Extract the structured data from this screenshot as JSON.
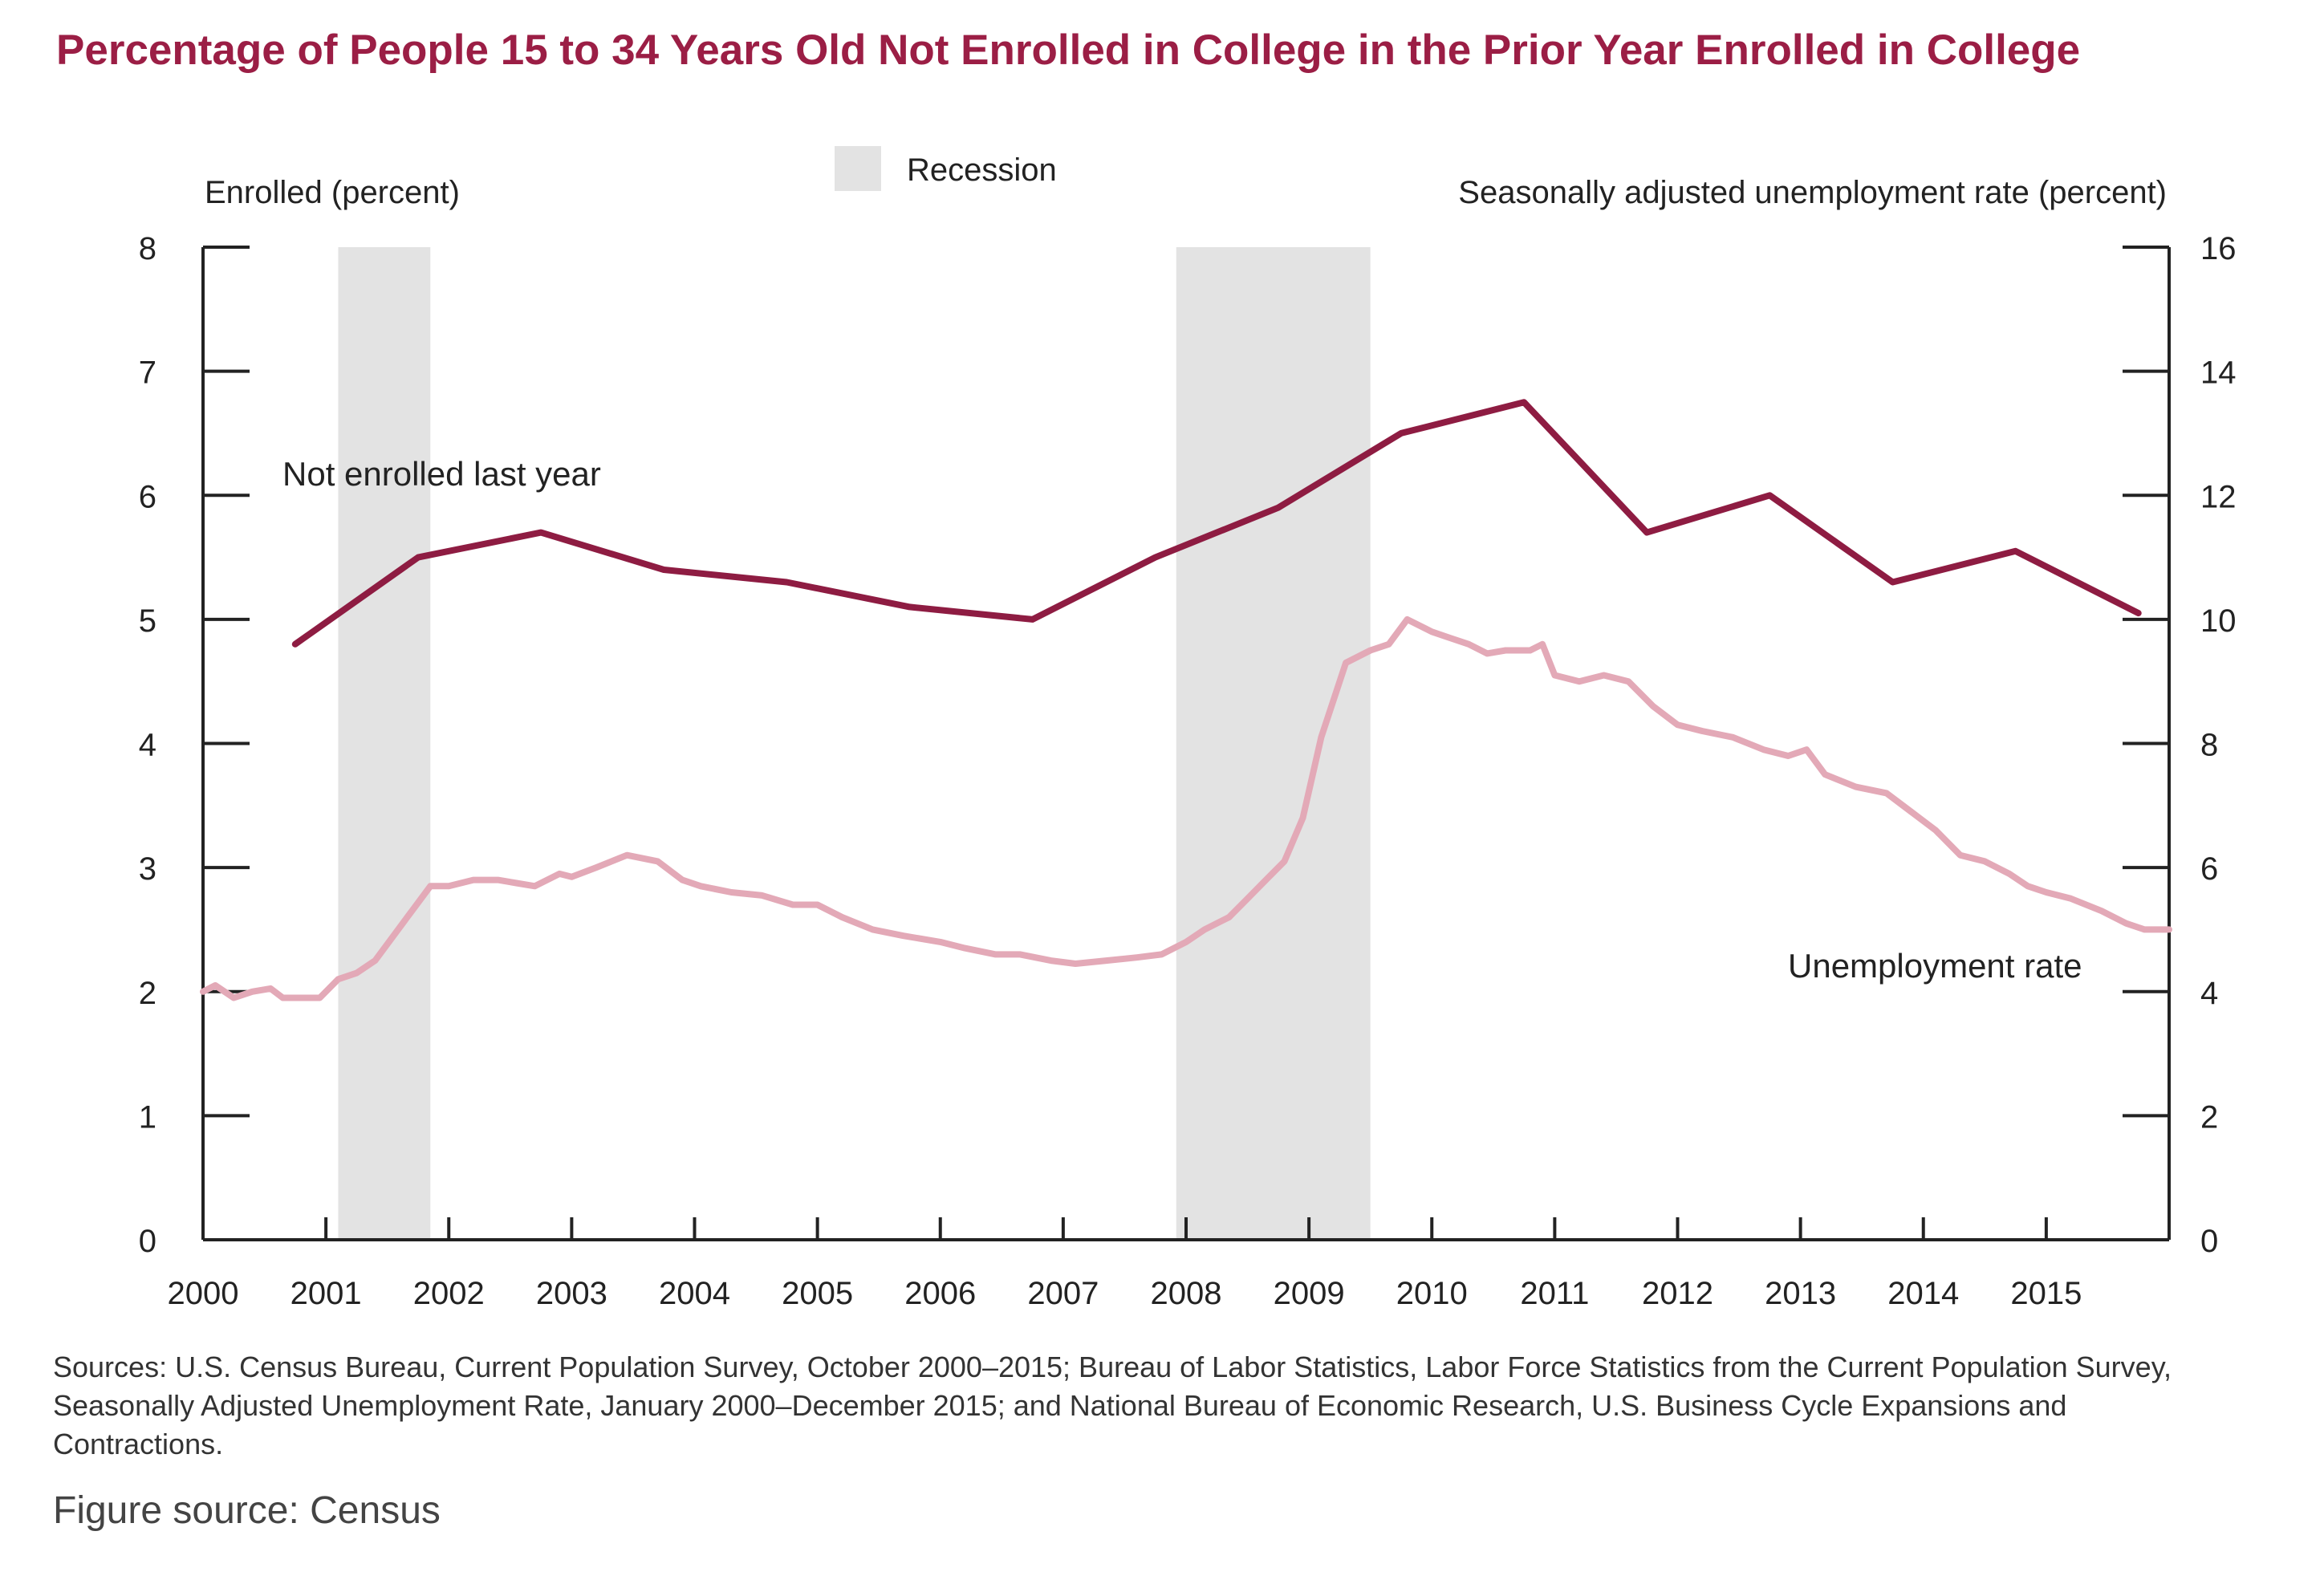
{
  "title": "Percentage of People 15 to 34 Years Old Not Enrolled in College in the Prior Year Enrolled in College",
  "sources": "Sources: U.S. Census Bureau, Current Population Survey, October 2000–2015; Bureau of Labor Statistics, Labor Force Statistics from the Current Population Survey, Seasonally Adjusted Unemployment Rate, January 2000–December 2015; and National Bureau of Economic Research, U.S. Business Cycle Expansions and Contractions.",
  "figure_source": "Figure source: Census",
  "colors": {
    "enrolled": "#8e1c42",
    "unemployment": "#e3a9b7",
    "recession": "#e3e3e3",
    "axis": "#222222"
  },
  "chart_data": {
    "type": "line",
    "title": "Percentage of People 15 to 34 Years Old Not Enrolled in College in the Prior Year Enrolled in College",
    "legend": {
      "label": "Recession",
      "placement": "top-center"
    },
    "left_axis_label": "Enrolled (percent)",
    "right_axis_label": "Seasonally adjusted unemployment rate (percent)",
    "x_ticks": [
      "2000",
      "2001",
      "2002",
      "2003",
      "2004",
      "2005",
      "2006",
      "2007",
      "2008",
      "2009",
      "2010",
      "2011",
      "2012",
      "2013",
      "2014",
      "2015"
    ],
    "xlim": [
      2000,
      2016
    ],
    "ylim_left": [
      0,
      8
    ],
    "ylim_right": [
      0,
      16
    ],
    "yticks_left": [
      0,
      1,
      2,
      3,
      4,
      5,
      6,
      7,
      8
    ],
    "yticks_right": [
      0,
      2,
      4,
      6,
      8,
      10,
      12,
      14,
      16
    ],
    "recessions": [
      {
        "start": 2001.1,
        "end": 2001.85
      },
      {
        "start": 2007.92,
        "end": 2009.5
      }
    ],
    "series": [
      {
        "name": "Not enrolled last year",
        "axis": "left",
        "label_text": "Not enrolled last year",
        "x": [
          2000.75,
          2001.75,
          2002.75,
          2003.75,
          2004.75,
          2005.75,
          2006.75,
          2007.75,
          2008.75,
          2009.75,
          2010.75,
          2011.75,
          2012.75,
          2013.75,
          2014.75,
          2015.75
        ],
        "y": [
          4.8,
          5.5,
          5.7,
          5.4,
          5.3,
          5.1,
          5.0,
          5.5,
          5.9,
          6.5,
          6.75,
          5.7,
          6.0,
          5.3,
          5.55,
          5.05
        ]
      },
      {
        "name": "Unemployment rate",
        "axis": "right",
        "label_text": "Unemployment rate",
        "x": [
          2000.0,
          2000.1,
          2000.25,
          2000.4,
          2000.55,
          2000.65,
          2000.75,
          2000.95,
          2001.1,
          2001.25,
          2001.4,
          2001.55,
          2001.7,
          2001.85,
          2002.0,
          2002.2,
          2002.4,
          2002.55,
          2002.7,
          2002.9,
          2003.0,
          2003.2,
          2003.45,
          2003.7,
          2003.9,
          2004.05,
          2004.3,
          2004.55,
          2004.8,
          2005.0,
          2005.2,
          2005.45,
          2005.7,
          2006.0,
          2006.2,
          2006.45,
          2006.65,
          2006.9,
          2007.1,
          2007.35,
          2007.6,
          2007.8,
          2008.0,
          2008.15,
          2008.35,
          2008.5,
          2008.65,
          2008.8,
          2008.95,
          2009.1,
          2009.3,
          2009.5,
          2009.65,
          2009.8,
          2010.0,
          2010.15,
          2010.3,
          2010.45,
          2010.6,
          2010.8,
          2010.9,
          2011.0,
          2011.2,
          2011.4,
          2011.6,
          2011.8,
          2012.0,
          2012.2,
          2012.45,
          2012.7,
          2012.9,
          2013.05,
          2013.2,
          2013.45,
          2013.7,
          2013.9,
          2014.1,
          2014.3,
          2014.5,
          2014.7,
          2014.85,
          2015.0,
          2015.2,
          2015.45,
          2015.65,
          2015.8,
          2016.0
        ],
        "y": [
          4.0,
          4.1,
          3.9,
          4.0,
          4.05,
          3.9,
          3.9,
          3.9,
          4.2,
          4.3,
          4.5,
          4.9,
          5.3,
          5.7,
          5.7,
          5.8,
          5.8,
          5.75,
          5.7,
          5.9,
          5.85,
          6.0,
          6.2,
          6.1,
          5.8,
          5.7,
          5.6,
          5.55,
          5.4,
          5.4,
          5.2,
          5.0,
          4.9,
          4.8,
          4.7,
          4.6,
          4.6,
          4.5,
          4.45,
          4.5,
          4.55,
          4.6,
          4.8,
          5.0,
          5.2,
          5.5,
          5.8,
          6.1,
          6.8,
          8.1,
          9.3,
          9.5,
          9.6,
          10.0,
          9.8,
          9.7,
          9.6,
          9.45,
          9.5,
          9.5,
          9.6,
          9.1,
          9.0,
          9.1,
          9.0,
          8.6,
          8.3,
          8.2,
          8.1,
          7.9,
          7.8,
          7.9,
          7.5,
          7.3,
          7.2,
          6.9,
          6.6,
          6.2,
          6.1,
          5.9,
          5.7,
          5.6,
          5.5,
          5.3,
          5.1,
          5.0,
          5.0
        ]
      }
    ]
  }
}
